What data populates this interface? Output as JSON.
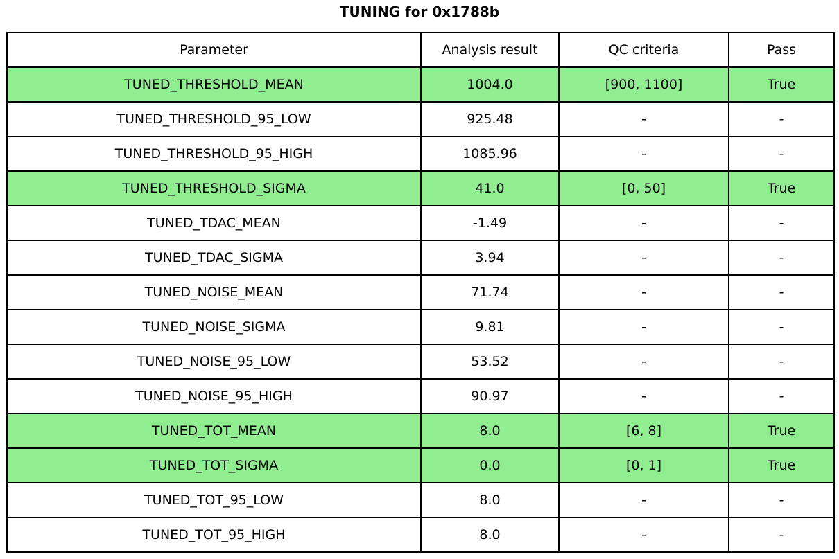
{
  "title": "TUNING for 0x1788b",
  "colors": {
    "highlight_green": "#90EE90",
    "border": "#000000",
    "background": "#FFFFFF",
    "text": "#000000"
  },
  "chart_data": {
    "type": "table",
    "title": "TUNING for 0x1788b",
    "columns": [
      "Parameter",
      "Analysis result",
      "QC criteria",
      "Pass"
    ],
    "rows": [
      {
        "parameter": "TUNED_THRESHOLD_MEAN",
        "result": "1004.0",
        "qc": "[900, 1100]",
        "pass": "True",
        "highlighted": true
      },
      {
        "parameter": "TUNED_THRESHOLD_95_LOW",
        "result": "925.48",
        "qc": "-",
        "pass": "-",
        "highlighted": false
      },
      {
        "parameter": "TUNED_THRESHOLD_95_HIGH",
        "result": "1085.96",
        "qc": "-",
        "pass": "-",
        "highlighted": false
      },
      {
        "parameter": "TUNED_THRESHOLD_SIGMA",
        "result": "41.0",
        "qc": "[0, 50]",
        "pass": "True",
        "highlighted": true
      },
      {
        "parameter": "TUNED_TDAC_MEAN",
        "result": "-1.49",
        "qc": "-",
        "pass": "-",
        "highlighted": false
      },
      {
        "parameter": "TUNED_TDAC_SIGMA",
        "result": "3.94",
        "qc": "-",
        "pass": "-",
        "highlighted": false
      },
      {
        "parameter": "TUNED_NOISE_MEAN",
        "result": "71.74",
        "qc": "-",
        "pass": "-",
        "highlighted": false
      },
      {
        "parameter": "TUNED_NOISE_SIGMA",
        "result": "9.81",
        "qc": "-",
        "pass": "-",
        "highlighted": false
      },
      {
        "parameter": "TUNED_NOISE_95_LOW",
        "result": "53.52",
        "qc": "-",
        "pass": "-",
        "highlighted": false
      },
      {
        "parameter": "TUNED_NOISE_95_HIGH",
        "result": "90.97",
        "qc": "-",
        "pass": "-",
        "highlighted": false
      },
      {
        "parameter": "TUNED_TOT_MEAN",
        "result": "8.0",
        "qc": "[6, 8]",
        "pass": "True",
        "highlighted": true
      },
      {
        "parameter": "TUNED_TOT_SIGMA",
        "result": "0.0",
        "qc": "[0, 1]",
        "pass": "True",
        "highlighted": true
      },
      {
        "parameter": "TUNED_TOT_95_LOW",
        "result": "8.0",
        "qc": "-",
        "pass": "-",
        "highlighted": false
      },
      {
        "parameter": "TUNED_TOT_95_HIGH",
        "result": "8.0",
        "qc": "-",
        "pass": "-",
        "highlighted": false
      }
    ],
    "highlighted_rows": [
      "TUNED_THRESHOLD_MEAN",
      "TUNED_THRESHOLD_SIGMA",
      "TUNED_TOT_MEAN",
      "TUNED_TOT_SIGMA"
    ],
    "legend_position": "none",
    "grid": false
  }
}
